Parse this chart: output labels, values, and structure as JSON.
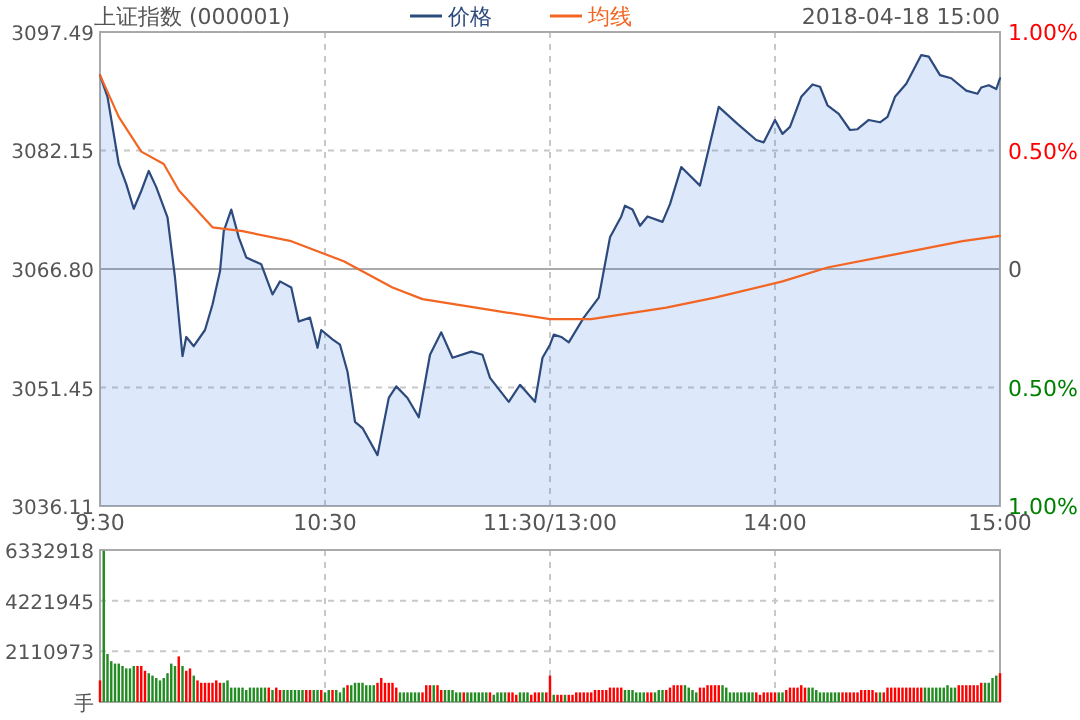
{
  "chart_data": [
    {
      "type": "line",
      "title": "上证指数 (000001)",
      "subtitle": "2018-04-18 15:00",
      "legend": "top",
      "grid": true,
      "categories": [
        "9:30",
        null,
        null,
        null,
        null,
        null,
        null,
        null,
        null,
        null,
        null,
        null,
        null,
        null,
        null,
        null,
        null,
        null,
        null,
        null,
        null,
        null,
        null,
        null,
        null,
        null,
        null,
        null,
        null,
        null,
        null,
        null,
        null,
        null,
        null,
        null,
        null,
        null,
        null,
        null,
        null,
        null,
        null,
        null,
        null,
        null,
        null,
        null,
        null,
        null,
        null,
        null,
        null,
        null,
        null,
        null,
        null,
        null,
        null,
        null,
        "10:30",
        null,
        null,
        null,
        null,
        null,
        null,
        null,
        null,
        null,
        null,
        null,
        null,
        null,
        null,
        null,
        null,
        null,
        null,
        null,
        null,
        null,
        null,
        null,
        null,
        null,
        null,
        null,
        null,
        null,
        null,
        null,
        null,
        null,
        null,
        null,
        null,
        null,
        null,
        null,
        null,
        null,
        null,
        null,
        null,
        null,
        null,
        null,
        null,
        null,
        null,
        null,
        null,
        null,
        null,
        null,
        null,
        null,
        null,
        null,
        "11:30/13:00",
        null,
        null,
        null,
        null,
        null,
        null,
        null,
        null,
        null,
        null,
        null,
        null,
        null,
        null,
        null,
        null,
        null,
        null,
        null,
        null,
        null,
        null,
        null,
        null,
        null,
        null,
        null,
        null,
        null,
        null,
        null,
        null,
        null,
        null,
        null,
        null,
        null,
        null,
        null,
        null,
        null,
        null,
        null,
        null,
        null,
        null,
        null,
        null,
        null,
        null,
        null,
        null,
        null,
        null,
        null,
        null,
        null,
        null,
        null,
        "14:00",
        null,
        null,
        null,
        null,
        null,
        null,
        null,
        null,
        null,
        null,
        null,
        null,
        null,
        null,
        null,
        null,
        null,
        null,
        null,
        null,
        null,
        null,
        null,
        null,
        null,
        null,
        null,
        null,
        null,
        null,
        null,
        null,
        null,
        null,
        null,
        null,
        null,
        null,
        null,
        null,
        null,
        null,
        null,
        null,
        null,
        null,
        null,
        null,
        null,
        null,
        null,
        null,
        null,
        null,
        null,
        null,
        null,
        null,
        null,
        "15:00"
      ],
      "ylim": [
        3036.11,
        3097.49
      ],
      "yticks": [
        3036.11,
        3051.45,
        {
          "value": 3066.8,
          "label": "3066.80"
        },
        3082.15,
        3097.49
      ],
      "y2lim": [
        -1,
        1
      ],
      "y2ticks": [
        {
          "value": -1,
          "label": "1.00%"
        },
        {
          "value": -0.5,
          "label": "0.50%"
        },
        {
          "value": 0,
          "label": "0"
        },
        {
          "value": 0.5,
          "label": "0.50%"
        },
        {
          "value": 1,
          "label": "1.00%"
        }
      ],
      "ref_lines": [
        {
          "axis": "y",
          "value": 3066.8,
          "color": "#aaaaaa"
        }
      ],
      "series": [
        {
          "name": "价格",
          "type": "area",
          "color": "#2c4a7c",
          "values": [
            3091.9,
            null,
            3089.1,
            null,
            null,
            3080.4,
            null,
            3077.8,
            null,
            3074.6,
            null,
            3076.9,
            null,
            3079.5,
            null,
            3077.4,
            null,
            null,
            3073.5,
            null,
            3065.7,
            null,
            3055.5,
            3058,
            null,
            3056.8,
            null,
            null,
            3058.9,
            null,
            3062.2,
            null,
            3066.5,
            3071.7,
            null,
            3074.5,
            null,
            3070.9,
            null,
            3068.3,
            null,
            null,
            null,
            3067.4,
            null,
            null,
            3063.5,
            null,
            3065.2,
            null,
            null,
            3064.4,
            null,
            3060,
            null,
            null,
            3060.5,
            null,
            3056.6,
            3058.9,
            null,
            null,
            3057.7,
            null,
            3057,
            null,
            3053.5,
            null,
            3047,
            null,
            3046.2,
            null,
            null,
            null,
            3042.7,
            null,
            null,
            3050.1,
            null,
            3051.6,
            null,
            null,
            3050.1,
            null,
            null,
            3047.6,
            null,
            null,
            3055.7,
            null,
            null,
            3058.6,
            null,
            null,
            3055.3,
            null,
            null,
            null,
            null,
            3056.1,
            null,
            null,
            3055.7,
            null,
            3052.7,
            null,
            null,
            null,
            null,
            3049.6,
            null,
            null,
            3051.8,
            null,
            null,
            null,
            3049.6,
            null,
            3055.3,
            null,
            3057,
            3058.3,
            null,
            3058,
            null,
            3057.3,
            null,
            null,
            null,
            3060.5,
            null,
            null,
            null,
            3063.1,
            null,
            null,
            3070.9,
            null,
            null,
            3073.6,
            3075,
            null,
            3074.5,
            null,
            3072.4,
            null,
            3073.6,
            null,
            null,
            null,
            3072.9,
            null,
            3075.2,
            null,
            null,
            3080,
            null,
            null,
            null,
            null,
            3077.6,
            null,
            null,
            null,
            null,
            3087.8,
            null,
            null,
            null,
            null,
            3085.6,
            null,
            null,
            null,
            null,
            3083.5,
            null,
            3083.2,
            null,
            null,
            3086.1,
            null,
            3084.3,
            null,
            3085.2,
            null,
            null,
            3089.1,
            null,
            null,
            3090.7,
            null,
            3090.4,
            null,
            3088,
            null,
            null,
            3086.9,
            null,
            null,
            3084.8,
            null,
            3084.9,
            null,
            null,
            3086.1,
            null,
            null,
            3085.8,
            null,
            3086.5,
            null,
            3089.1,
            null,
            null,
            3090.8,
            null,
            null,
            null,
            3094.5,
            null,
            3094.3,
            null,
            null,
            3091.9,
            null,
            null,
            3091.5,
            null,
            null,
            null,
            3089.9,
            null,
            null,
            3089.5,
            3090.3,
            null,
            3090.6,
            null,
            3090.1,
            3091.5
          ]
        },
        {
          "name": "均线",
          "type": "line",
          "color": "#f26522",
          "values": [
            3091.9,
            null,
            null,
            null,
            null,
            3086.5,
            null,
            null,
            null,
            null,
            null,
            3082,
            null,
            null,
            null,
            null,
            null,
            3080.4,
            null,
            null,
            null,
            3077,
            null,
            null,
            null,
            null,
            null,
            null,
            null,
            null,
            3072.2,
            null,
            null,
            null,
            null,
            null,
            null,
            null,
            3071.7,
            null,
            null,
            null,
            null,
            null,
            null,
            null,
            null,
            null,
            null,
            null,
            null,
            3070.4,
            null,
            null,
            null,
            null,
            null,
            null,
            null,
            null,
            null,
            null,
            null,
            null,
            null,
            3067.8,
            null,
            null,
            null,
            null,
            null,
            null,
            null,
            null,
            null,
            null,
            null,
            null,
            3064.4,
            null,
            null,
            null,
            null,
            null,
            null,
            null,
            3062.9,
            null,
            null,
            null,
            null,
            null,
            null,
            null,
            null,
            null,
            null,
            null,
            null,
            null,
            null,
            null,
            null,
            null,
            3061.5,
            null,
            null,
            null,
            null,
            null,
            null,
            null,
            null,
            null,
            null,
            null,
            null,
            null,
            null,
            null,
            3060.3,
            null,
            null,
            null,
            null,
            null,
            null,
            null,
            null,
            null,
            null,
            3060.3,
            null,
            null,
            null,
            null,
            null,
            null,
            null,
            null,
            null,
            null,
            null,
            null,
            null,
            null,
            null,
            null,
            null,
            null,
            null,
            3061.8,
            null,
            null,
            null,
            null,
            null,
            null,
            null,
            null,
            null,
            null,
            null,
            null,
            3063.1,
            null,
            null,
            null,
            null,
            null,
            null,
            null,
            null,
            null,
            null,
            null,
            null,
            null,
            null,
            null,
            null,
            null,
            3065.2,
            null,
            null,
            null,
            null,
            null,
            null,
            null,
            null,
            null,
            null,
            null,
            3067,
            null,
            null,
            null,
            null,
            null,
            null,
            null,
            null,
            null,
            null,
            null,
            null,
            null,
            null,
            null,
            null,
            null,
            3068.7,
            null,
            null,
            null,
            null,
            null,
            null,
            null,
            null,
            null,
            null,
            null,
            null,
            null,
            null,
            null,
            null,
            null,
            3070.4,
            null,
            null,
            null,
            null,
            null,
            null,
            null,
            null,
            null,
            3071.1
          ]
        }
      ]
    },
    {
      "type": "bar",
      "grid": true,
      "tick_labels": "y",
      "categories": [
        null,
        null,
        null,
        null,
        null,
        null,
        null,
        null,
        null,
        null,
        null,
        null,
        null,
        null,
        null,
        null,
        null,
        null,
        null,
        null,
        null,
        null,
        null,
        null,
        null,
        null,
        null,
        null,
        null,
        null,
        null,
        null,
        null,
        null,
        null,
        null,
        null,
        null,
        null,
        null,
        null,
        null,
        null,
        null,
        null,
        null,
        null,
        null,
        null,
        null,
        null,
        null,
        null,
        null,
        null,
        null,
        null,
        null,
        null,
        null,
        null,
        null,
        null,
        null,
        null,
        null,
        null,
        null,
        null,
        null,
        null,
        null,
        null,
        null,
        null,
        null,
        null,
        null,
        null,
        null,
        null,
        null,
        null,
        null,
        null,
        null,
        null,
        null,
        null,
        null,
        null,
        null,
        null,
        null,
        null,
        null,
        null,
        null,
        null,
        null,
        null,
        null,
        null,
        null,
        null,
        null,
        null,
        null,
        null,
        null,
        null,
        null,
        null,
        null,
        null,
        null,
        null,
        null,
        null,
        null,
        null,
        null,
        null,
        null,
        null,
        null,
        null,
        null,
        null,
        null,
        null,
        null,
        null,
        null,
        null,
        null,
        null,
        null,
        null,
        null,
        null,
        null,
        null,
        null,
        null,
        null,
        null,
        null,
        null,
        null,
        null,
        null,
        null,
        null,
        null,
        null,
        null,
        null,
        null,
        null,
        null,
        null,
        null,
        null,
        null,
        null,
        null,
        null,
        null,
        null,
        null,
        null,
        null,
        null,
        null,
        null,
        null,
        null,
        null,
        null,
        null,
        null,
        null,
        null,
        null,
        null,
        null,
        null,
        null,
        null,
        null,
        null,
        null,
        null,
        null,
        null,
        null,
        null,
        null,
        null,
        null,
        null,
        null,
        null,
        null,
        null,
        null,
        null,
        null,
        null,
        null,
        null,
        null,
        null,
        null,
        null,
        null,
        null,
        null,
        null,
        null,
        null,
        null,
        null,
        null,
        null,
        null,
        null,
        null,
        null,
        null,
        null,
        null,
        null,
        null,
        null,
        null,
        null,
        null,
        null,
        null
      ],
      "ylim": [
        0,
        6332918
      ],
      "yticks": [
        {
          "value": 0,
          "label": "手"
        },
        2110973,
        4221945,
        6332918
      ],
      "values": [
        900000,
        6300000,
        2000000,
        1700000,
        1600000,
        1600000,
        1500000,
        1400000,
        1400000,
        1500000,
        1500000,
        1500000,
        1300000,
        1200000,
        1100000,
        1000000,
        900000,
        1000000,
        1200000,
        1600000,
        1500000,
        1900000,
        1500000,
        1300000,
        1400000,
        1100000,
        900000,
        800000,
        800000,
        800000,
        800000,
        900000,
        800000,
        800000,
        900000,
        600000,
        600000,
        600000,
        600000,
        500000,
        600000,
        600000,
        600000,
        600000,
        600000,
        600000,
        500000,
        600000,
        500000,
        500000,
        500000,
        500000,
        500000,
        500000,
        500000,
        500000,
        500000,
        500000,
        500000,
        500000,
        400000,
        500000,
        500000,
        500000,
        400000,
        600000,
        700000,
        700000,
        800000,
        800000,
        800000,
        700000,
        700000,
        700000,
        800000,
        1000000,
        800000,
        800000,
        800000,
        600000,
        400000,
        400000,
        400000,
        400000,
        400000,
        400000,
        400000,
        700000,
        700000,
        700000,
        700000,
        500000,
        500000,
        500000,
        500000,
        400000,
        400000,
        400000,
        400000,
        400000,
        400000,
        400000,
        400000,
        400000,
        400000,
        300000,
        400000,
        400000,
        400000,
        400000,
        400000,
        300000,
        400000,
        400000,
        400000,
        300000,
        400000,
        400000,
        400000,
        400000,
        1100000,
        300000,
        300000,
        300000,
        300000,
        300000,
        300000,
        400000,
        400000,
        400000,
        400000,
        400000,
        500000,
        500000,
        500000,
        500000,
        600000,
        600000,
        600000,
        600000,
        500000,
        500000,
        500000,
        400000,
        400000,
        400000,
        400000,
        400000,
        400000,
        500000,
        500000,
        500000,
        600000,
        700000,
        700000,
        700000,
        700000,
        600000,
        500000,
        400000,
        600000,
        600000,
        700000,
        700000,
        700000,
        700000,
        700000,
        600000,
        400000,
        400000,
        400000,
        400000,
        400000,
        400000,
        400000,
        400000,
        300000,
        400000,
        400000,
        400000,
        400000,
        400000,
        400000,
        500000,
        600000,
        600000,
        600000,
        700000,
        600000,
        600000,
        600000,
        500000,
        400000,
        400000,
        400000,
        400000,
        400000,
        400000,
        400000,
        400000,
        400000,
        400000,
        400000,
        500000,
        500000,
        500000,
        500000,
        400000,
        400000,
        400000,
        600000,
        600000,
        600000,
        600000,
        600000,
        600000,
        600000,
        600000,
        600000,
        600000,
        600000,
        600000,
        600000,
        600000,
        600000,
        600000,
        700000,
        600000,
        600000,
        700000,
        700000,
        700000,
        700000,
        700000,
        700000,
        800000,
        800000,
        800000,
        1000000,
        1100000,
        1200000
      ],
      "colors": [
        "#ff0000",
        "#228b22",
        "#228b22",
        "#228b22",
        "#228b22",
        "#228b22",
        "#228b22",
        "#228b22",
        "#228b22",
        "#228b22",
        "#ff0000",
        "#ff0000",
        "#ff0000",
        "#228b22",
        "#228b22",
        "#228b22",
        "#228b22",
        "#228b22",
        "#228b22",
        "#228b22",
        "#228b22",
        "#ff0000",
        "#228b22",
        "#ff0000",
        "#ff0000",
        "#228b22",
        "#ff0000",
        "#ff0000",
        "#ff0000",
        "#ff0000",
        "#ff0000",
        "#ff0000",
        "#ff0000",
        "#228b22",
        "#228b22",
        "#228b22",
        "#228b22",
        "#228b22",
        "#228b22",
        "#228b22",
        "#228b22",
        "#228b22",
        "#228b22",
        "#228b22",
        "#228b22",
        "#ff0000",
        "#228b22",
        "#ff0000",
        "#ff0000",
        "#228b22",
        "#228b22",
        "#228b22",
        "#228b22",
        "#228b22",
        "#228b22",
        "#ff0000",
        "#ff0000",
        "#228b22",
        "#228b22",
        "#ff0000",
        "#228b22",
        "#228b22",
        "#ff0000",
        "#228b22",
        "#228b22",
        "#228b22",
        "#ff0000",
        "#228b22",
        "#228b22",
        "#228b22",
        "#228b22",
        "#228b22",
        "#228b22",
        "#228b22",
        "#ff0000",
        "#ff0000",
        "#ff0000",
        "#ff0000",
        "#ff0000",
        "#ff0000",
        "#228b22",
        "#228b22",
        "#228b22",
        "#228b22",
        "#228b22",
        "#228b22",
        "#ff0000",
        "#ff0000",
        "#ff0000",
        "#228b22",
        "#ff0000",
        "#ff0000",
        "#228b22",
        "#228b22",
        "#228b22",
        "#228b22",
        "#228b22",
        "#ff0000",
        "#228b22",
        "#228b22",
        "#228b22",
        "#228b22",
        "#228b22",
        "#228b22",
        "#ff0000",
        "#228b22",
        "#228b22",
        "#228b22",
        "#228b22",
        "#ff0000",
        "#ff0000",
        "#ff0000",
        "#228b22",
        "#228b22",
        "#228b22",
        "#ff0000",
        "#ff0000",
        "#ff0000",
        "#228b22",
        "#ff0000",
        "#ff0000",
        "#228b22",
        "#ff0000",
        "#ff0000",
        "#228b22",
        "#ff0000",
        "#ff0000",
        "#ff0000",
        "#ff0000",
        "#ff0000",
        "#ff0000",
        "#ff0000",
        "#ff0000",
        "#ff0000",
        "#ff0000",
        "#ff0000",
        "#ff0000",
        "#ff0000",
        "#ff0000",
        "#ff0000",
        "#228b22",
        "#228b22",
        "#228b22",
        "#228b22",
        "#228b22",
        "#228b22",
        "#ff0000",
        "#ff0000",
        "#228b22",
        "#228b22",
        "#228b22",
        "#ff0000",
        "#ff0000",
        "#ff0000",
        "#ff0000",
        "#ff0000",
        "#228b22",
        "#228b22",
        "#228b22",
        "#228b22",
        "#ff0000",
        "#ff0000",
        "#ff0000",
        "#ff0000",
        "#ff0000",
        "#ff0000",
        "#228b22",
        "#228b22",
        "#228b22",
        "#228b22",
        "#228b22",
        "#228b22",
        "#228b22",
        "#228b22",
        "#228b22",
        "#ff0000",
        "#ff0000",
        "#ff0000",
        "#ff0000",
        "#ff0000",
        "#ff0000",
        "#228b22",
        "#228b22",
        "#ff0000",
        "#ff0000",
        "#ff0000",
        "#ff0000",
        "#ff0000",
        "#ff0000",
        "#228b22",
        "#228b22",
        "#228b22",
        "#228b22",
        "#228b22",
        "#228b22",
        "#228b22",
        "#228b22",
        "#228b22",
        "#ff0000",
        "#ff0000",
        "#ff0000",
        "#ff0000",
        "#ff0000",
        "#ff0000",
        "#ff0000",
        "#ff0000",
        "#ff0000",
        "#ff0000",
        "#228b22",
        "#ff0000",
        "#ff0000",
        "#ff0000",
        "#ff0000",
        "#ff0000",
        "#ff0000",
        "#ff0000",
        "#ff0000",
        "#ff0000",
        "#ff0000",
        "#ff0000",
        "#228b22",
        "#228b22",
        "#228b22",
        "#228b22",
        "#228b22",
        "#228b22",
        "#228b22",
        "#228b22",
        "#228b22",
        "#ff0000",
        "#ff0000",
        "#ff0000",
        "#ff0000",
        "#ff0000",
        "#ff0000",
        "#ff0000",
        "#228b22",
        "#228b22",
        "#228b22",
        "#228b22",
        "#ff0000"
      ]
    }
  ]
}
